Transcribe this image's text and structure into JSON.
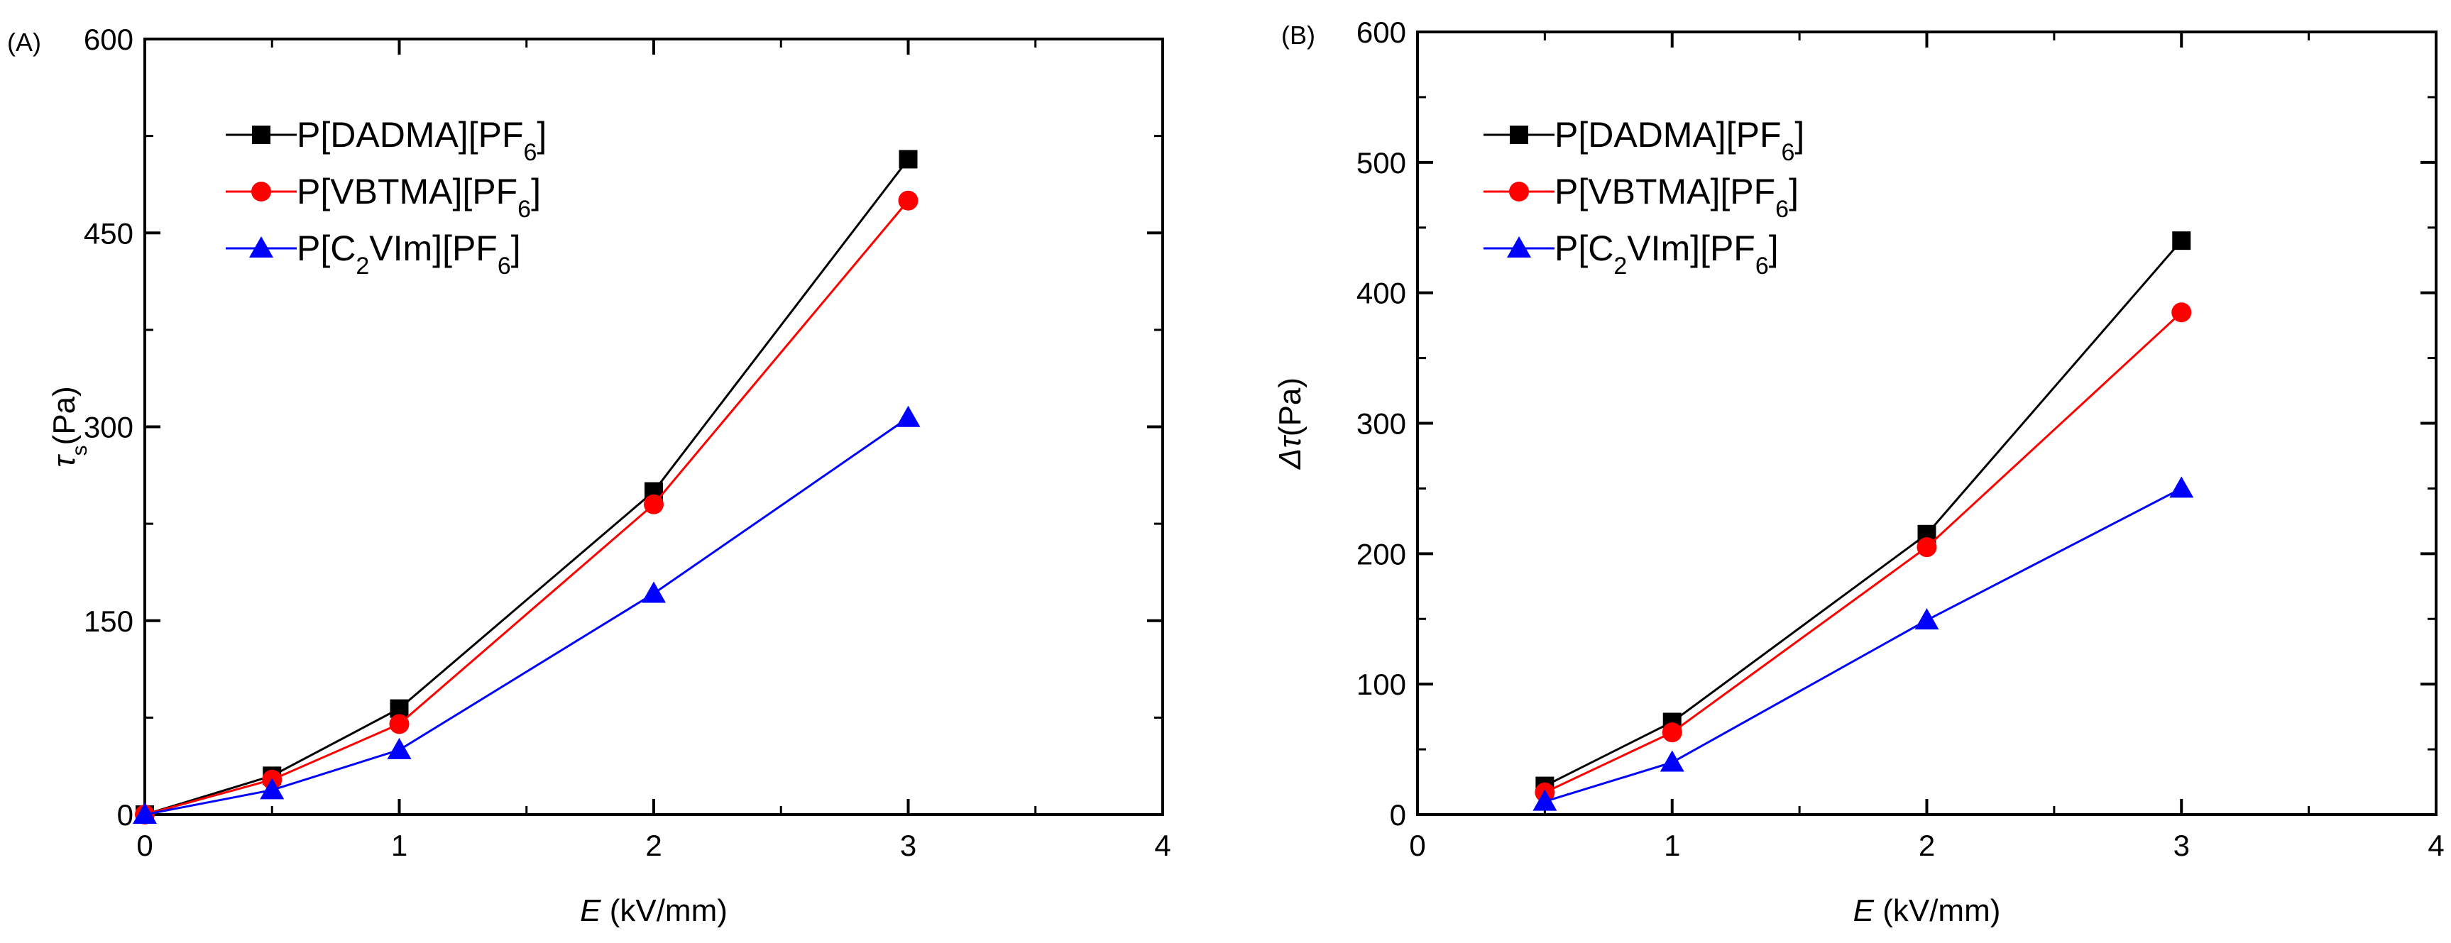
{
  "chart_data": [
    {
      "type": "line",
      "panel_label": "(A)",
      "title": "",
      "xlabel": {
        "var": "E",
        "unit": " (kV/mm)"
      },
      "ylabel": {
        "symbol": "τ",
        "sub": "s",
        "unit": "(Pa)"
      },
      "xlim": [
        0,
        4
      ],
      "ylim": [
        0,
        600
      ],
      "xticks": [
        0,
        1,
        2,
        3,
        4
      ],
      "xtick_labels": [
        "0",
        "1",
        "2",
        "3",
        "4"
      ],
      "yticks": [
        0,
        150,
        300,
        450,
        600
      ],
      "ytick_labels": [
        "0",
        "150",
        "300",
        "450",
        "600"
      ],
      "grid": false,
      "legend_position": "top-left",
      "series": [
        {
          "name": "P[DADMA][PF6]",
          "label_pre": "P[DADMA][PF",
          "label_sub": "6",
          "label_post": "]",
          "label_mid": "",
          "color": "#000000",
          "marker": "square",
          "x": [
            0,
            0.5,
            1,
            2,
            3
          ],
          "y": [
            0,
            30,
            82,
            250,
            507
          ]
        },
        {
          "name": "P[VBTMA][PF6]",
          "label_pre": "P[VBTMA][PF",
          "label_sub": "6",
          "label_post": "]",
          "label_mid": "",
          "color": "#ff0000",
          "marker": "circle",
          "x": [
            0,
            0.5,
            1,
            2,
            3
          ],
          "y": [
            0,
            27,
            70,
            240,
            475
          ]
        },
        {
          "name": "P[C2VIm][PF6]",
          "label_pre": "P[C",
          "label_sub": "2",
          "label_mid": "VIm][PF",
          "label_sub2": "6",
          "label_post": "]",
          "color": "#0000ff",
          "marker": "triangle",
          "x": [
            0,
            0.5,
            1,
            2,
            3
          ],
          "y": [
            0,
            19,
            50,
            171,
            307
          ]
        }
      ]
    },
    {
      "type": "line",
      "panel_label": "(B)",
      "title": "",
      "xlabel": {
        "var": "E",
        "unit": " (kV/mm)"
      },
      "ylabel": {
        "symbol": "Δτ",
        "sub": "",
        "unit": "(Pa)"
      },
      "xlim": [
        0,
        4
      ],
      "ylim": [
        0,
        600
      ],
      "xticks": [
        0,
        1,
        2,
        3,
        4
      ],
      "xtick_labels": [
        "0",
        "1",
        "2",
        "3",
        "4"
      ],
      "yticks": [
        0,
        100,
        200,
        300,
        400,
        500,
        600
      ],
      "ytick_labels": [
        "0",
        "100",
        "200",
        "300",
        "400",
        "500",
        "600"
      ],
      "grid": false,
      "legend_position": "top-left",
      "series": [
        {
          "name": "P[DADMA][PF6]",
          "label_pre": "P[DADMA][PF",
          "label_sub": "6",
          "label_post": "]",
          "label_mid": "",
          "color": "#000000",
          "marker": "square",
          "x": [
            0.5,
            1,
            2,
            3
          ],
          "y": [
            22,
            71,
            215,
            440
          ]
        },
        {
          "name": "P[VBTMA][PF6]",
          "label_pre": "P[VBTMA][PF",
          "label_sub": "6",
          "label_post": "]",
          "label_mid": "",
          "color": "#ff0000",
          "marker": "circle",
          "x": [
            0.5,
            1,
            2,
            3
          ],
          "y": [
            17,
            63,
            205,
            385
          ]
        },
        {
          "name": "P[C2VIm][PF6]",
          "label_pre": "P[C",
          "label_sub": "2",
          "label_mid": "VIm][PF",
          "label_sub2": "6",
          "label_post": "]",
          "color": "#0000ff",
          "marker": "triangle",
          "x": [
            0.5,
            1,
            2,
            3
          ],
          "y": [
            10,
            40,
            149,
            250
          ]
        }
      ]
    }
  ]
}
